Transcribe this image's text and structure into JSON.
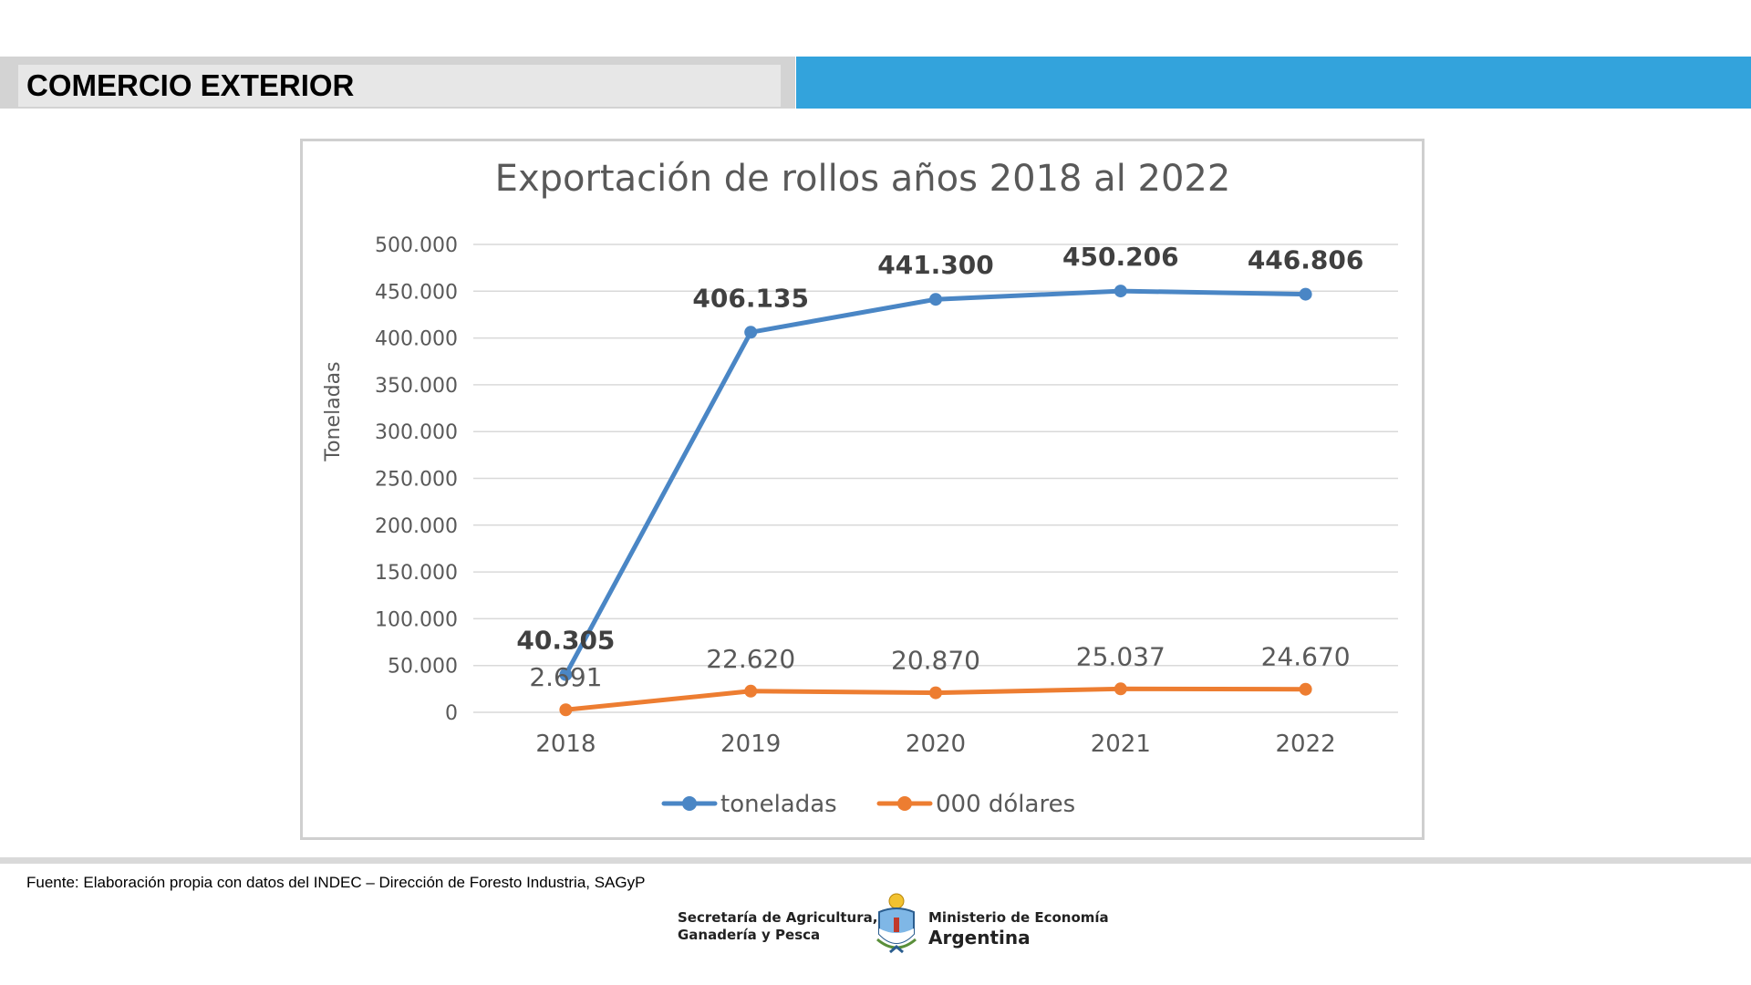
{
  "header": {
    "title": "COMERCIO EXTERIOR",
    "accent_color": "#33a3dc"
  },
  "chart_data": {
    "type": "line",
    "title": "Exportación de rollos años 2018 al 2022",
    "ylabel": "Toneladas",
    "xlabel": "",
    "categories": [
      "2018",
      "2019",
      "2020",
      "2021",
      "2022"
    ],
    "ylim": [
      0,
      500000
    ],
    "yticks": [
      "0",
      "50.000",
      "100.000",
      "150.000",
      "200.000",
      "250.000",
      "300.000",
      "350.000",
      "400.000",
      "450.000",
      "500.000"
    ],
    "grid": true,
    "legend_position": "bottom",
    "series": [
      {
        "name": "toneladas",
        "color": "#4a86c5",
        "values": [
          40305,
          406135,
          441300,
          450206,
          446806
        ],
        "labels": [
          "40.305",
          "406.135",
          "441.300",
          "450.206",
          "446.806"
        ],
        "label_style": "bold"
      },
      {
        "name": "000 dólares",
        "color": "#ed7d31",
        "values": [
          2691,
          22620,
          20870,
          25037,
          24670
        ],
        "labels": [
          "2.691",
          "22.620",
          "20.870",
          "25.037",
          "24.670"
        ],
        "label_style": "normal"
      }
    ]
  },
  "footer": {
    "source": "Fuente: Elaboración propia con datos del INDEC – Dirección de Foresto Industria, SAGyP",
    "logo_left_line1": "Secretaría de Agricultura,",
    "logo_left_line2": "Ganadería y Pesca",
    "logo_right_line1": "Ministerio de Economía",
    "logo_right_line2": "Argentina",
    "emblem_icon": "argentina-coat-of-arms-icon"
  }
}
